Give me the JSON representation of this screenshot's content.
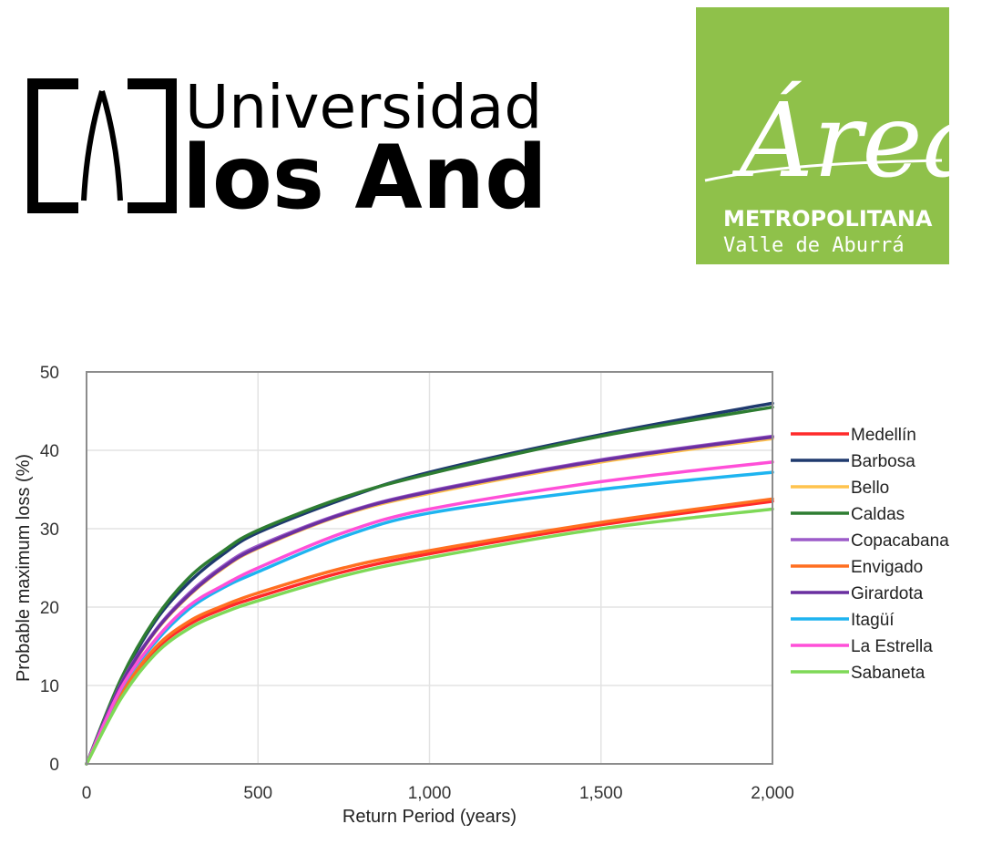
{
  "logos": {
    "left": {
      "line1": "Universidad de",
      "line2": "los Andes",
      "colors": {
        "ink": "#000000"
      }
    },
    "right": {
      "script": "Área",
      "line1": "METROPOLITANA",
      "line2": "Valle de Aburrá",
      "colors": {
        "background": "#8fc14a",
        "text": "#ffffff"
      }
    }
  },
  "chart_data": {
    "type": "line",
    "title": "",
    "xlabel": "Return Period (years)",
    "ylabel": "Probable maximum loss (%)",
    "xlim": [
      0,
      2000
    ],
    "ylim": [
      0,
      50
    ],
    "x_ticks": [
      0,
      500,
      1000,
      1500,
      2000
    ],
    "x_tick_labels": [
      "0",
      "500",
      "1,000",
      "1,500",
      "2,000"
    ],
    "y_ticks": [
      0,
      10,
      20,
      30,
      40,
      50
    ],
    "y_tick_labels": [
      "0",
      "10",
      "20",
      "30",
      "40",
      "50"
    ],
    "grid": true,
    "legend_position": "right",
    "x": [
      0,
      100,
      200,
      300,
      400,
      500,
      750,
      1000,
      1500,
      2000
    ],
    "series": [
      {
        "name": "Medellín",
        "color": "#ff2a2a",
        "values": [
          0,
          8.5,
          14.5,
          17.8,
          19.8,
          21.3,
          24.5,
          26.8,
          30.5,
          33.5
        ]
      },
      {
        "name": "Barbosa",
        "color": "#1f3a6e",
        "values": [
          0,
          10.5,
          18.2,
          23.2,
          26.8,
          29.5,
          33.8,
          37.2,
          42.0,
          46.0
        ]
      },
      {
        "name": "Bello",
        "color": "#ffc34d",
        "values": [
          0,
          10.0,
          16.8,
          21.5,
          25.0,
          27.5,
          31.8,
          34.5,
          38.5,
          41.5
        ]
      },
      {
        "name": "Caldas",
        "color": "#2e7d32",
        "values": [
          0,
          10.8,
          18.5,
          23.8,
          27.2,
          29.8,
          34.0,
          37.0,
          41.8,
          45.5
        ]
      },
      {
        "name": "Copacabana",
        "color": "#9c5bc9",
        "values": [
          0,
          10.2,
          17.0,
          21.8,
          25.3,
          27.8,
          32.0,
          34.8,
          38.8,
          41.8
        ]
      },
      {
        "name": "Envigado",
        "color": "#ff6f20",
        "values": [
          0,
          8.8,
          14.8,
          18.2,
          20.2,
          21.8,
          25.0,
          27.2,
          30.8,
          33.8
        ]
      },
      {
        "name": "Girardota",
        "color": "#6a2fa0",
        "values": [
          0,
          10.1,
          16.9,
          21.6,
          25.1,
          27.6,
          31.9,
          34.7,
          38.7,
          41.7
        ]
      },
      {
        "name": "Itagüí",
        "color": "#1eb4f0",
        "values": [
          0,
          9.5,
          15.5,
          19.8,
          22.5,
          24.5,
          29.0,
          32.0,
          35.0,
          37.2
        ]
      },
      {
        "name": "La Estrella",
        "color": "#ff4fd8",
        "values": [
          0,
          9.6,
          15.8,
          20.2,
          22.8,
          25.0,
          29.5,
          32.5,
          36.0,
          38.5
        ]
      },
      {
        "name": "Sabaneta",
        "color": "#7ed957",
        "values": [
          0,
          8.3,
          14.0,
          17.3,
          19.3,
          20.8,
          24.0,
          26.3,
          30.0,
          32.5
        ]
      }
    ]
  }
}
